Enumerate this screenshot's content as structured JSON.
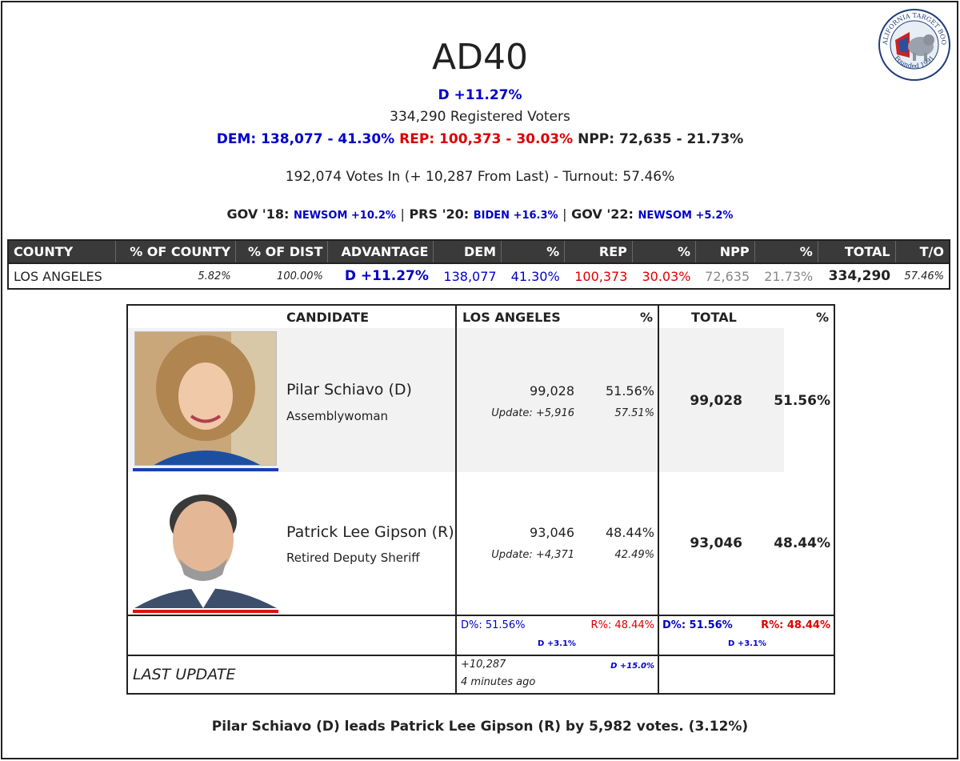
{
  "header": {
    "title": "AD40",
    "advantage": "D +11.27%",
    "registered": "334,290 Registered Voters",
    "dem": "DEM: 138,077 - 41.30%",
    "rep": "REP: 100,373 - 30.03%",
    "npp": "NPP: 72,635 - 21.73%",
    "votes_in": "192,074 Votes In (+ 10,287 From Last) - Turnout: 57.46%",
    "gov18_label": "GOV '18:",
    "gov18_val": "NEWSOM +10.2%",
    "prs20_label": "PRS '20:",
    "prs20_val": "BIDEN +16.3%",
    "gov22_label": "GOV '22:",
    "gov22_val": "NEWSOM +5.2%",
    "sep": "|"
  },
  "logo": {
    "top_text": "CALIFORNIA TARGET BOOK",
    "bottom_text": "Founded 1991"
  },
  "county_table": {
    "headers": [
      "COUNTY",
      "% OF COUNTY",
      "% OF DIST",
      "ADVANTAGE",
      "DEM",
      "%",
      "REP",
      "%",
      "NPP",
      "%",
      "TOTAL",
      "T/O"
    ],
    "row": {
      "county": "LOS ANGELES",
      "pct_county": "5.82%",
      "pct_dist": "100.00%",
      "advantage": "D +11.27%",
      "dem": "138,077",
      "dem_pct": "41.30%",
      "rep": "100,373",
      "rep_pct": "30.03%",
      "npp": "72,635",
      "npp_pct": "21.73%",
      "total": "334,290",
      "turnout": "57.46%"
    }
  },
  "candidates_table": {
    "headers": {
      "candidate": "CANDIDATE",
      "county": "LOS ANGELES",
      "pct": "%",
      "total": "TOTAL",
      "total_pct": "%"
    },
    "candidates": [
      {
        "name": "Pilar Schiavo (D)",
        "title": "Assemblywoman",
        "votes": "99,028",
        "pct": "51.56%",
        "update": "Update: +5,916",
        "update_pct": "57.51%",
        "total": "99,028",
        "total_pct": "51.56%",
        "party_color": "#1a3fb0"
      },
      {
        "name": "Patrick Lee Gipson (R)",
        "title": "Retired Deputy Sheriff",
        "votes": "93,046",
        "pct": "48.44%",
        "update": "Update: +4,371",
        "update_pct": "42.49%",
        "total": "93,046",
        "total_pct": "48.44%",
        "party_color": "#dd1111"
      }
    ],
    "summary": {
      "d_pct": "D%: 51.56%",
      "r_pct": "R%: 48.44%",
      "margin": "D +3.1%",
      "total_d_pct": "D%: 51.56%",
      "total_r_pct": "R%: 48.44%",
      "total_margin": "D +3.1%"
    },
    "last_update": {
      "label": "LAST UPDATE",
      "delta": "+10,287",
      "margin": "D +15.0%",
      "ago": "4 minutes ago"
    }
  },
  "footer": "Pilar Schiavo (D) leads Patrick Lee Gipson (R) by 5,982 votes. (3.12%)"
}
